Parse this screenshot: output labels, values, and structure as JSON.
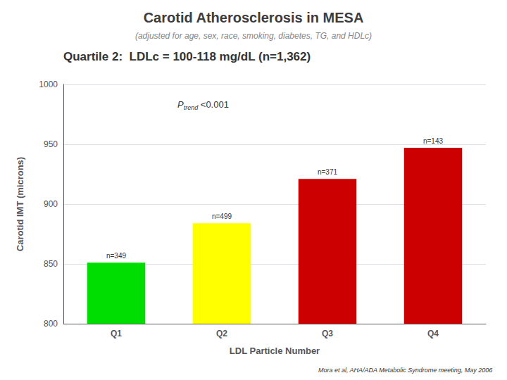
{
  "chart_data": {
    "type": "bar",
    "title": "Carotid Atherosclerosis in MESA",
    "subtitle": "(adjusted for age, sex, race, smoking, diabetes, TG, and HDLc)",
    "annotations": [
      "Quartile 2:  LDLc = 100-118 mg/dL (n=1,362)"
    ],
    "p_trend": {
      "symbol": "P",
      "subscript": "trend",
      "text": "<0.001"
    },
    "caption": "Mora et al, AHA/ADA Metabolic Syndrome meeting, May 2006",
    "categories": [
      "Q1",
      "Q2",
      "Q3",
      "Q4"
    ],
    "values": [
      851,
      884,
      921,
      947
    ],
    "colors": [
      "#00dd00",
      "#ffff00",
      "#cc0000",
      "#cc0000"
    ],
    "bar_labels": [
      "n=349",
      "n=499",
      "n=371",
      "n=143"
    ],
    "xlabel": "LDL Particle Number",
    "ylabel": "Carotid IMT (microns)",
    "ylim": [
      800,
      1000
    ],
    "yticks": [
      800,
      850,
      900,
      950,
      1000
    ],
    "grid": true
  }
}
